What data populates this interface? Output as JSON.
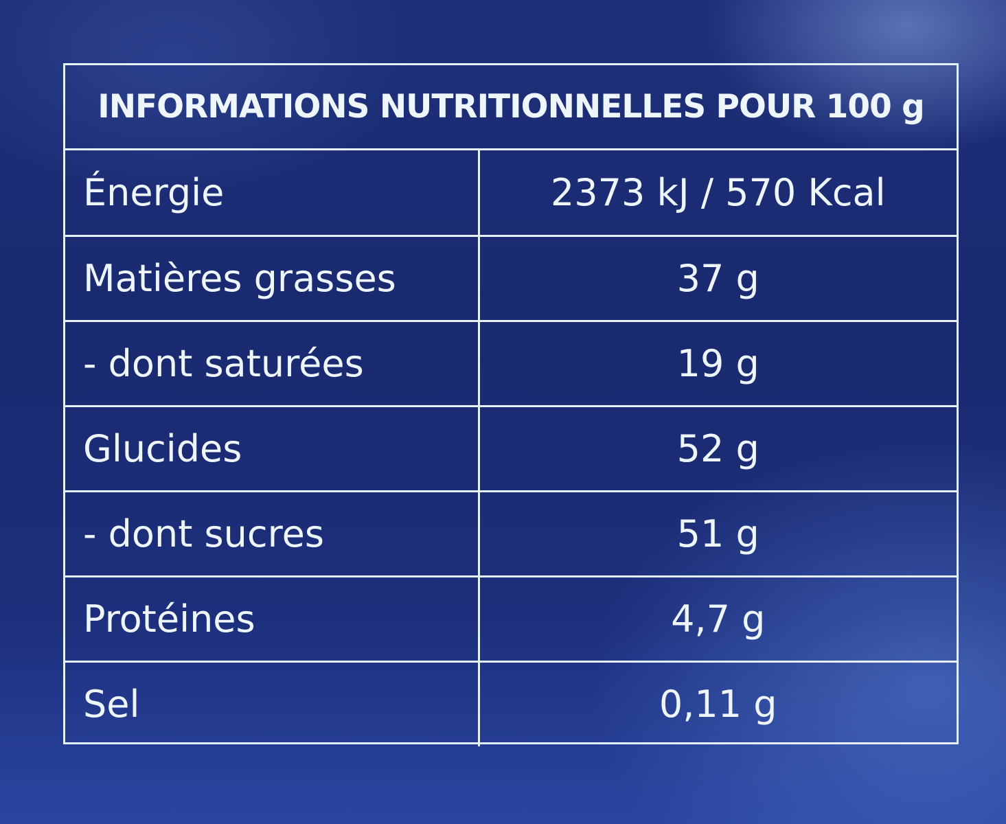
{
  "label": {
    "title": "INFORMATIONS NUTRITIONNELLES POUR 100 g",
    "rows": [
      {
        "name": "Énergie",
        "value": "2373 kJ / 570 Kcal"
      },
      {
        "name": "Matières grasses",
        "value": "37 g"
      },
      {
        "name": "- dont saturées",
        "value": "19 g"
      },
      {
        "name": "Glucides",
        "value": "52 g"
      },
      {
        "name": "- dont sucres",
        "value": "51 g"
      },
      {
        "name": "Protéines",
        "value": "4,7 g"
      },
      {
        "name": "Sel",
        "value": "0,11 g"
      }
    ]
  },
  "colors": {
    "background": "#1e2f7a",
    "text_and_lines": "#e6f2fb"
  }
}
